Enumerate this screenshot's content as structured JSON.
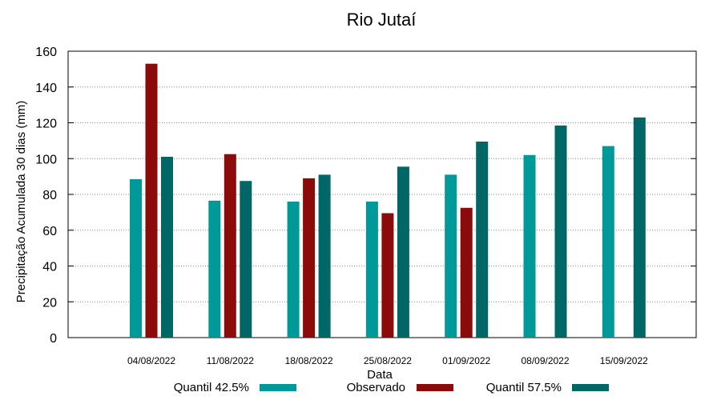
{
  "chart_data": {
    "type": "bar",
    "title": "Rio Jutaí",
    "xlabel": "Data",
    "ylabel": "Precipitação Acumulada 30 dias (mm)",
    "ylim": [
      0,
      160
    ],
    "yticks": [
      0,
      20,
      40,
      60,
      80,
      100,
      120,
      140,
      160
    ],
    "grid": true,
    "legend_position": "bottom",
    "categories": [
      "04/08/2022",
      "11/08/2022",
      "18/08/2022",
      "25/08/2022",
      "01/09/2022",
      "08/09/2022",
      "15/09/2022"
    ],
    "series": [
      {
        "name": "Quantil 42.5%",
        "color": "#009999",
        "values": [
          88.5,
          76.5,
          76,
          76,
          91,
          102,
          107
        ]
      },
      {
        "name": "Observado",
        "color": "#8b0a0a",
        "values": [
          153,
          102.5,
          89,
          69.5,
          72.5,
          null,
          null
        ]
      },
      {
        "name": "Quantil 57.5%",
        "color": "#006666",
        "values": [
          101,
          87.5,
          91,
          95.5,
          109.5,
          118.5,
          123
        ]
      }
    ]
  }
}
